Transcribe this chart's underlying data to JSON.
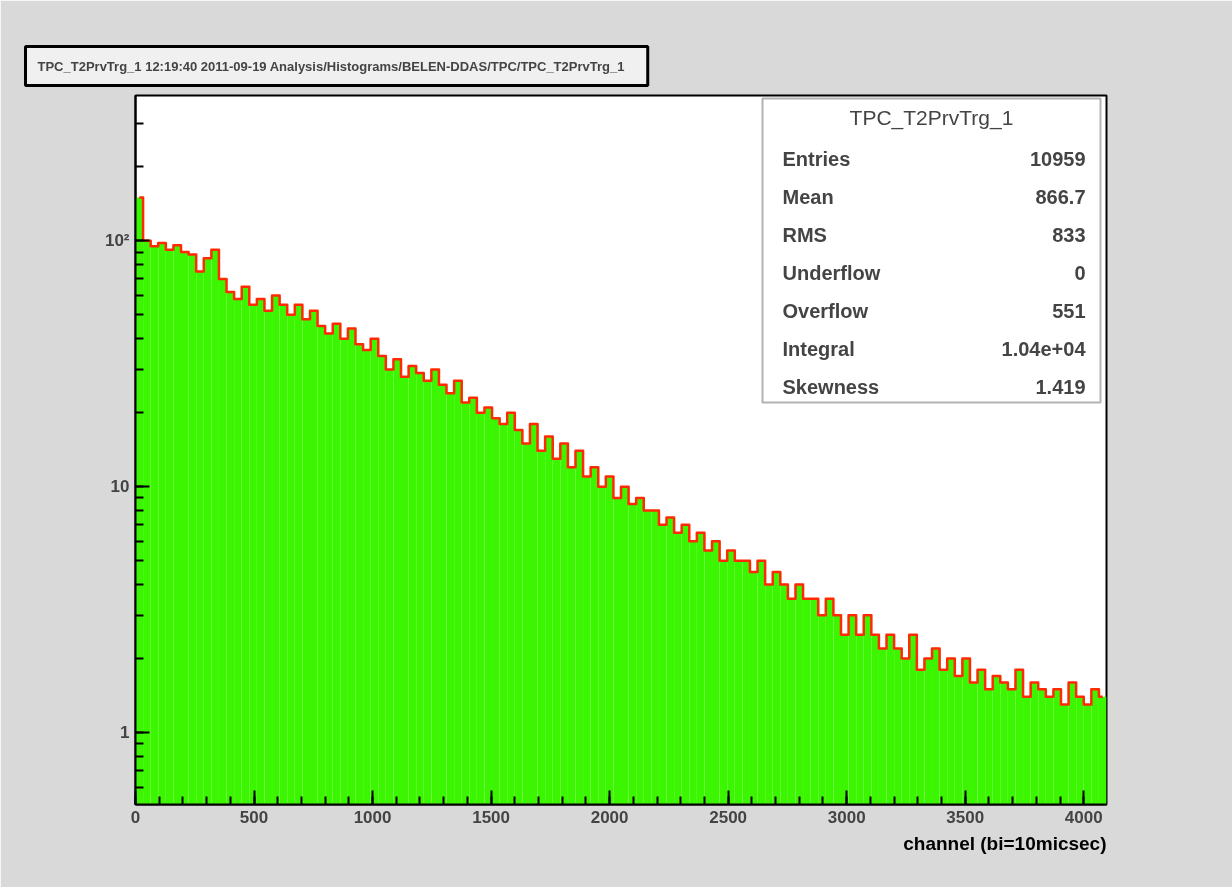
{
  "chart_data": {
    "type": "histogram",
    "title": "TPC_T2PrvTrg_1  12:19:40  2011-09-19  Analysis/Histograms/BELEN-DDAS/TPC/TPC_T2PrvTrg_1",
    "xlabel": "channel (bi=10micsec)",
    "annotations": [
      "TPC_T2PrvTrg_1",
      "Entries 10959",
      "Mean 866.7",
      "RMS 833",
      "Underflow 0",
      "Overflow 551",
      "Integral 1.04e+04",
      "Skewness 1.419"
    ],
    "bins": [
      0,
      32,
      64,
      96,
      128,
      160,
      192,
      224,
      256,
      288,
      320,
      352,
      384,
      416,
      448,
      480,
      512,
      544,
      576,
      608,
      640,
      672,
      704,
      736,
      768,
      800,
      832,
      864,
      896,
      928,
      960,
      992,
      1024,
      1056,
      1088,
      1120,
      1152,
      1184,
      1216,
      1248,
      1280,
      1312,
      1344,
      1376,
      1408,
      1440,
      1472,
      1504,
      1536,
      1568,
      1600,
      1632,
      1664,
      1696,
      1728,
      1760,
      1792,
      1824,
      1856,
      1888,
      1920,
      1952,
      1984,
      2016,
      2048,
      2080,
      2112,
      2144,
      2176,
      2208,
      2240,
      2272,
      2304,
      2336,
      2368,
      2400,
      2432,
      2464,
      2496,
      2528,
      2560,
      2592,
      2624,
      2656,
      2688,
      2720,
      2752,
      2784,
      2816,
      2848,
      2880,
      2912,
      2944,
      2976,
      3008,
      3040,
      3072,
      3104,
      3136,
      3168,
      3200,
      3232,
      3264,
      3296,
      3328,
      3360,
      3392,
      3424,
      3456,
      3488,
      3520,
      3552,
      3584,
      3616,
      3648,
      3680,
      3712,
      3744,
      3776,
      3808,
      3840,
      3872,
      3904,
      3936,
      3968,
      4000,
      4032,
      4064,
      4096
    ],
    "series": [
      {
        "color": "#3cf500",
        "values": [
          150,
          100,
          95,
          98,
          92,
          96,
          90,
          88,
          75,
          85,
          92,
          70,
          62,
          58,
          65,
          55,
          58,
          52,
          60,
          55,
          50,
          55,
          48,
          52,
          45,
          42,
          46,
          40,
          44,
          38,
          36,
          40,
          34,
          30,
          33,
          28,
          31,
          29,
          27,
          30,
          26,
          24,
          27,
          22,
          23,
          20,
          21,
          19,
          18,
          20,
          17,
          15,
          18,
          14,
          16,
          13,
          15,
          12,
          14,
          11,
          12,
          10,
          11,
          9,
          10,
          8.5,
          9,
          8,
          8,
          7,
          7.5,
          6.5,
          7,
          6,
          6.5,
          5.5,
          6,
          5,
          5.5,
          5,
          5,
          4.5,
          5,
          4,
          4.5,
          4,
          3.5,
          4,
          3.5,
          3.5,
          3,
          3.5,
          3,
          2.5,
          3,
          2.5,
          3,
          2.5,
          2.2,
          2.5,
          2.2,
          2,
          2.5,
          1.8,
          2,
          2.2,
          1.8,
          2,
          1.7,
          2,
          1.6,
          1.8,
          1.5,
          1.7,
          1.6,
          1.5,
          1.8,
          1.4,
          1.6,
          1.5,
          1.4,
          1.5,
          1.3,
          1.6,
          1.4,
          1.3,
          1.5,
          1.4
        ]
      },
      {
        "type": "step",
        "color": "#ff2a00",
        "x": [
          16,
          48,
          80,
          112,
          144,
          176,
          208,
          240,
          272,
          304,
          336,
          368,
          400,
          432,
          464,
          496,
          528,
          560,
          592,
          624,
          656,
          688,
          720,
          752,
          784,
          816,
          848,
          880,
          912,
          944,
          976,
          1008,
          1040,
          1072,
          1104,
          1136,
          1168,
          1200,
          1232,
          1264,
          1296,
          1328,
          1360,
          1392,
          1424,
          1456,
          1488,
          1520,
          1552,
          1584,
          1616,
          1648,
          1680,
          1712,
          1744,
          1776,
          1808,
          1840,
          1872,
          1904,
          1936,
          1968,
          2000,
          2032,
          2064,
          2096,
          2128,
          2160,
          2192,
          2224,
          2256,
          2288,
          2320,
          2352,
          2384,
          2416,
          2448,
          2480,
          2512,
          2544,
          2576,
          2608,
          2640,
          2672,
          2704,
          2736,
          2768,
          2800,
          2832,
          2864,
          2896,
          2928,
          2960,
          2992,
          3024,
          3056,
          3088,
          3120,
          3152,
          3184,
          3216,
          3248,
          3280,
          3312,
          3344,
          3376,
          3408,
          3440,
          3472,
          3504,
          3536,
          3568,
          3600,
          3632,
          3664,
          3696,
          3728,
          3760,
          3792,
          3824,
          3856,
          3888,
          3920,
          3952,
          3984,
          4016,
          4048,
          4080
        ],
        "values": [
          150,
          100,
          95,
          98,
          92,
          96,
          90,
          88,
          75,
          85,
          92,
          70,
          62,
          58,
          65,
          55,
          58,
          52,
          60,
          55,
          50,
          55,
          48,
          52,
          45,
          42,
          46,
          40,
          44,
          38,
          36,
          40,
          34,
          30,
          33,
          28,
          31,
          29,
          27,
          30,
          26,
          24,
          27,
          22,
          23,
          20,
          21,
          19,
          18,
          20,
          17,
          15,
          18,
          14,
          16,
          13,
          15,
          12,
          14,
          11,
          12,
          10,
          11,
          9,
          10,
          8.5,
          9,
          8,
          8,
          7,
          7.5,
          6.5,
          7,
          6,
          6.5,
          5.5,
          6,
          5,
          5.5,
          5,
          5,
          4.5,
          5,
          4,
          4.5,
          4,
          3.5,
          4,
          3.5,
          3.5,
          3,
          3.5,
          3,
          2.5,
          3,
          2.5,
          3,
          2.5,
          2.2,
          2.5,
          2.2,
          2,
          2.5,
          1.8,
          2,
          2.2,
          1.8,
          2,
          1.7,
          2,
          1.6,
          1.8,
          1.5,
          1.7,
          1.6,
          1.5,
          1.8,
          1.4,
          1.6,
          1.5,
          1.4,
          1.5,
          1.3,
          1.6,
          1.4,
          1.3,
          1.5,
          1.4
        ]
      }
    ],
    "xlim": [
      0,
      4096
    ],
    "ylim": [
      0.51,
      390
    ],
    "xticks": [
      0,
      500,
      1000,
      1500,
      2000,
      2500,
      3000,
      3500,
      4000
    ],
    "yticks": [
      1,
      10,
      {
        "value": 100,
        "label": "10²"
      }
    ],
    "log": "y",
    "grid": false
  }
}
